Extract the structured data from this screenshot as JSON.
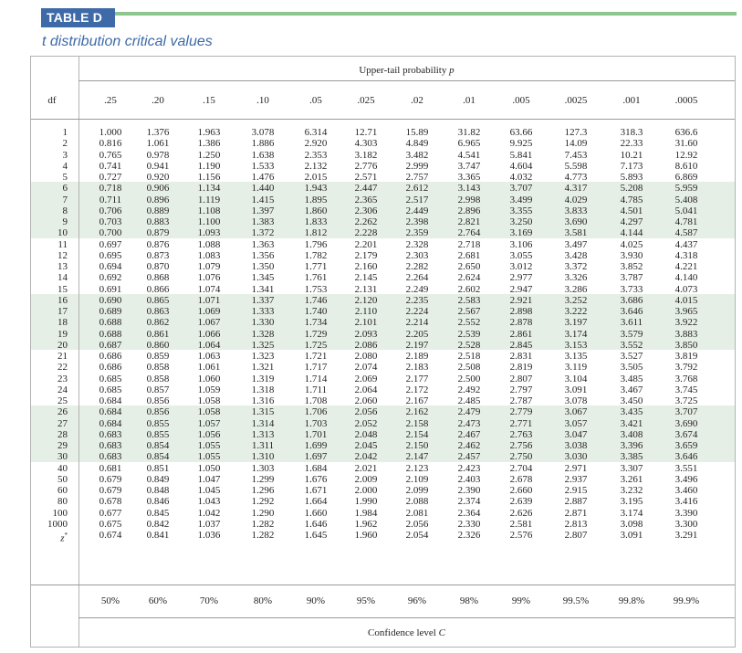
{
  "table": {
    "label": "TABLE D",
    "title": "t distribution critical values",
    "column_group_label": "Upper-tail probability p",
    "footer_label": "Confidence level C",
    "row_header": "df",
    "band_color": "#e6efe6",
    "accent_color": "#3e6aa8",
    "rule_color": "#8dc78f"
  },
  "chart_data": {
    "type": "table",
    "columns": [
      ".25",
      ".20",
      ".15",
      ".10",
      ".05",
      ".025",
      ".02",
      ".01",
      ".005",
      ".0025",
      ".001",
      ".0005"
    ],
    "confidence_levels": [
      "50%",
      "60%",
      "70%",
      "80%",
      "90%",
      "95%",
      "96%",
      "98%",
      "99%",
      "99.5%",
      "99.8%",
      "99.9%"
    ],
    "rows": [
      {
        "df": "1",
        "values": [
          "1.000",
          "1.376",
          "1.963",
          "3.078",
          "6.314",
          "12.71",
          "15.89",
          "31.82",
          "63.66",
          "127.3",
          "318.3",
          "636.6"
        ]
      },
      {
        "df": "2",
        "values": [
          "0.816",
          "1.061",
          "1.386",
          "1.886",
          "2.920",
          "4.303",
          "4.849",
          "6.965",
          "9.925",
          "14.09",
          "22.33",
          "31.60"
        ]
      },
      {
        "df": "3",
        "values": [
          "0.765",
          "0.978",
          "1.250",
          "1.638",
          "2.353",
          "3.182",
          "3.482",
          "4.541",
          "5.841",
          "7.453",
          "10.21",
          "12.92"
        ]
      },
      {
        "df": "4",
        "values": [
          "0.741",
          "0.941",
          "1.190",
          "1.533",
          "2.132",
          "2.776",
          "2.999",
          "3.747",
          "4.604",
          "5.598",
          "7.173",
          "8.610"
        ]
      },
      {
        "df": "5",
        "values": [
          "0.727",
          "0.920",
          "1.156",
          "1.476",
          "2.015",
          "2.571",
          "2.757",
          "3.365",
          "4.032",
          "4.773",
          "5.893",
          "6.869"
        ]
      },
      {
        "df": "6",
        "values": [
          "0.718",
          "0.906",
          "1.134",
          "1.440",
          "1.943",
          "2.447",
          "2.612",
          "3.143",
          "3.707",
          "4.317",
          "5.208",
          "5.959"
        ]
      },
      {
        "df": "7",
        "values": [
          "0.711",
          "0.896",
          "1.119",
          "1.415",
          "1.895",
          "2.365",
          "2.517",
          "2.998",
          "3.499",
          "4.029",
          "4.785",
          "5.408"
        ]
      },
      {
        "df": "8",
        "values": [
          "0.706",
          "0.889",
          "1.108",
          "1.397",
          "1.860",
          "2.306",
          "2.449",
          "2.896",
          "3.355",
          "3.833",
          "4.501",
          "5.041"
        ]
      },
      {
        "df": "9",
        "values": [
          "0.703",
          "0.883",
          "1.100",
          "1.383",
          "1.833",
          "2.262",
          "2.398",
          "2.821",
          "3.250",
          "3.690",
          "4.297",
          "4.781"
        ]
      },
      {
        "df": "10",
        "values": [
          "0.700",
          "0.879",
          "1.093",
          "1.372",
          "1.812",
          "2.228",
          "2.359",
          "2.764",
          "3.169",
          "3.581",
          "4.144",
          "4.587"
        ]
      },
      {
        "df": "11",
        "values": [
          "0.697",
          "0.876",
          "1.088",
          "1.363",
          "1.796",
          "2.201",
          "2.328",
          "2.718",
          "3.106",
          "3.497",
          "4.025",
          "4.437"
        ]
      },
      {
        "df": "12",
        "values": [
          "0.695",
          "0.873",
          "1.083",
          "1.356",
          "1.782",
          "2.179",
          "2.303",
          "2.681",
          "3.055",
          "3.428",
          "3.930",
          "4.318"
        ]
      },
      {
        "df": "13",
        "values": [
          "0.694",
          "0.870",
          "1.079",
          "1.350",
          "1.771",
          "2.160",
          "2.282",
          "2.650",
          "3.012",
          "3.372",
          "3.852",
          "4.221"
        ]
      },
      {
        "df": "14",
        "values": [
          "0.692",
          "0.868",
          "1.076",
          "1.345",
          "1.761",
          "2.145",
          "2.264",
          "2.624",
          "2.977",
          "3.326",
          "3.787",
          "4.140"
        ]
      },
      {
        "df": "15",
        "values": [
          "0.691",
          "0.866",
          "1.074",
          "1.341",
          "1.753",
          "2.131",
          "2.249",
          "2.602",
          "2.947",
          "3.286",
          "3.733",
          "4.073"
        ]
      },
      {
        "df": "16",
        "values": [
          "0.690",
          "0.865",
          "1.071",
          "1.337",
          "1.746",
          "2.120",
          "2.235",
          "2.583",
          "2.921",
          "3.252",
          "3.686",
          "4.015"
        ]
      },
      {
        "df": "17",
        "values": [
          "0.689",
          "0.863",
          "1.069",
          "1.333",
          "1.740",
          "2.110",
          "2.224",
          "2.567",
          "2.898",
          "3.222",
          "3.646",
          "3.965"
        ]
      },
      {
        "df": "18",
        "values": [
          "0.688",
          "0.862",
          "1.067",
          "1.330",
          "1.734",
          "2.101",
          "2.214",
          "2.552",
          "2.878",
          "3.197",
          "3.611",
          "3.922"
        ]
      },
      {
        "df": "19",
        "values": [
          "0.688",
          "0.861",
          "1.066",
          "1.328",
          "1.729",
          "2.093",
          "2.205",
          "2.539",
          "2.861",
          "3.174",
          "3.579",
          "3.883"
        ]
      },
      {
        "df": "20",
        "values": [
          "0.687",
          "0.860",
          "1.064",
          "1.325",
          "1.725",
          "2.086",
          "2.197",
          "2.528",
          "2.845",
          "3.153",
          "3.552",
          "3.850"
        ]
      },
      {
        "df": "21",
        "values": [
          "0.686",
          "0.859",
          "1.063",
          "1.323",
          "1.721",
          "2.080",
          "2.189",
          "2.518",
          "2.831",
          "3.135",
          "3.527",
          "3.819"
        ]
      },
      {
        "df": "22",
        "values": [
          "0.686",
          "0.858",
          "1.061",
          "1.321",
          "1.717",
          "2.074",
          "2.183",
          "2.508",
          "2.819",
          "3.119",
          "3.505",
          "3.792"
        ]
      },
      {
        "df": "23",
        "values": [
          "0.685",
          "0.858",
          "1.060",
          "1.319",
          "1.714",
          "2.069",
          "2.177",
          "2.500",
          "2.807",
          "3.104",
          "3.485",
          "3.768"
        ]
      },
      {
        "df": "24",
        "values": [
          "0.685",
          "0.857",
          "1.059",
          "1.318",
          "1.711",
          "2.064",
          "2.172",
          "2.492",
          "2.797",
          "3.091",
          "3.467",
          "3.745"
        ]
      },
      {
        "df": "25",
        "values": [
          "0.684",
          "0.856",
          "1.058",
          "1.316",
          "1.708",
          "2.060",
          "2.167",
          "2.485",
          "2.787",
          "3.078",
          "3.450",
          "3.725"
        ]
      },
      {
        "df": "26",
        "values": [
          "0.684",
          "0.856",
          "1.058",
          "1.315",
          "1.706",
          "2.056",
          "2.162",
          "2.479",
          "2.779",
          "3.067",
          "3.435",
          "3.707"
        ]
      },
      {
        "df": "27",
        "values": [
          "0.684",
          "0.855",
          "1.057",
          "1.314",
          "1.703",
          "2.052",
          "2.158",
          "2.473",
          "2.771",
          "3.057",
          "3.421",
          "3.690"
        ]
      },
      {
        "df": "28",
        "values": [
          "0.683",
          "0.855",
          "1.056",
          "1.313",
          "1.701",
          "2.048",
          "2.154",
          "2.467",
          "2.763",
          "3.047",
          "3.408",
          "3.674"
        ]
      },
      {
        "df": "29",
        "values": [
          "0.683",
          "0.854",
          "1.055",
          "1.311",
          "1.699",
          "2.045",
          "2.150",
          "2.462",
          "2.756",
          "3.038",
          "3.396",
          "3.659"
        ]
      },
      {
        "df": "30",
        "values": [
          "0.683",
          "0.854",
          "1.055",
          "1.310",
          "1.697",
          "2.042",
          "2.147",
          "2.457",
          "2.750",
          "3.030",
          "3.385",
          "3.646"
        ]
      },
      {
        "df": "40",
        "values": [
          "0.681",
          "0.851",
          "1.050",
          "1.303",
          "1.684",
          "2.021",
          "2.123",
          "2.423",
          "2.704",
          "2.971",
          "3.307",
          "3.551"
        ]
      },
      {
        "df": "50",
        "values": [
          "0.679",
          "0.849",
          "1.047",
          "1.299",
          "1.676",
          "2.009",
          "2.109",
          "2.403",
          "2.678",
          "2.937",
          "3.261",
          "3.496"
        ]
      },
      {
        "df": "60",
        "values": [
          "0.679",
          "0.848",
          "1.045",
          "1.296",
          "1.671",
          "2.000",
          "2.099",
          "2.390",
          "2.660",
          "2.915",
          "3.232",
          "3.460"
        ]
      },
      {
        "df": "80",
        "values": [
          "0.678",
          "0.846",
          "1.043",
          "1.292",
          "1.664",
          "1.990",
          "2.088",
          "2.374",
          "2.639",
          "2.887",
          "3.195",
          "3.416"
        ]
      },
      {
        "df": "100",
        "values": [
          "0.677",
          "0.845",
          "1.042",
          "1.290",
          "1.660",
          "1.984",
          "2.081",
          "2.364",
          "2.626",
          "2.871",
          "3.174",
          "3.390"
        ]
      },
      {
        "df": "1000",
        "values": [
          "0.675",
          "0.842",
          "1.037",
          "1.282",
          "1.646",
          "1.962",
          "2.056",
          "2.330",
          "2.581",
          "2.813",
          "3.098",
          "3.300"
        ]
      },
      {
        "df": "z*",
        "values": [
          "0.674",
          "0.841",
          "1.036",
          "1.282",
          "1.645",
          "1.960",
          "2.054",
          "2.326",
          "2.576",
          "2.807",
          "3.091",
          "3.291"
        ]
      }
    ]
  }
}
